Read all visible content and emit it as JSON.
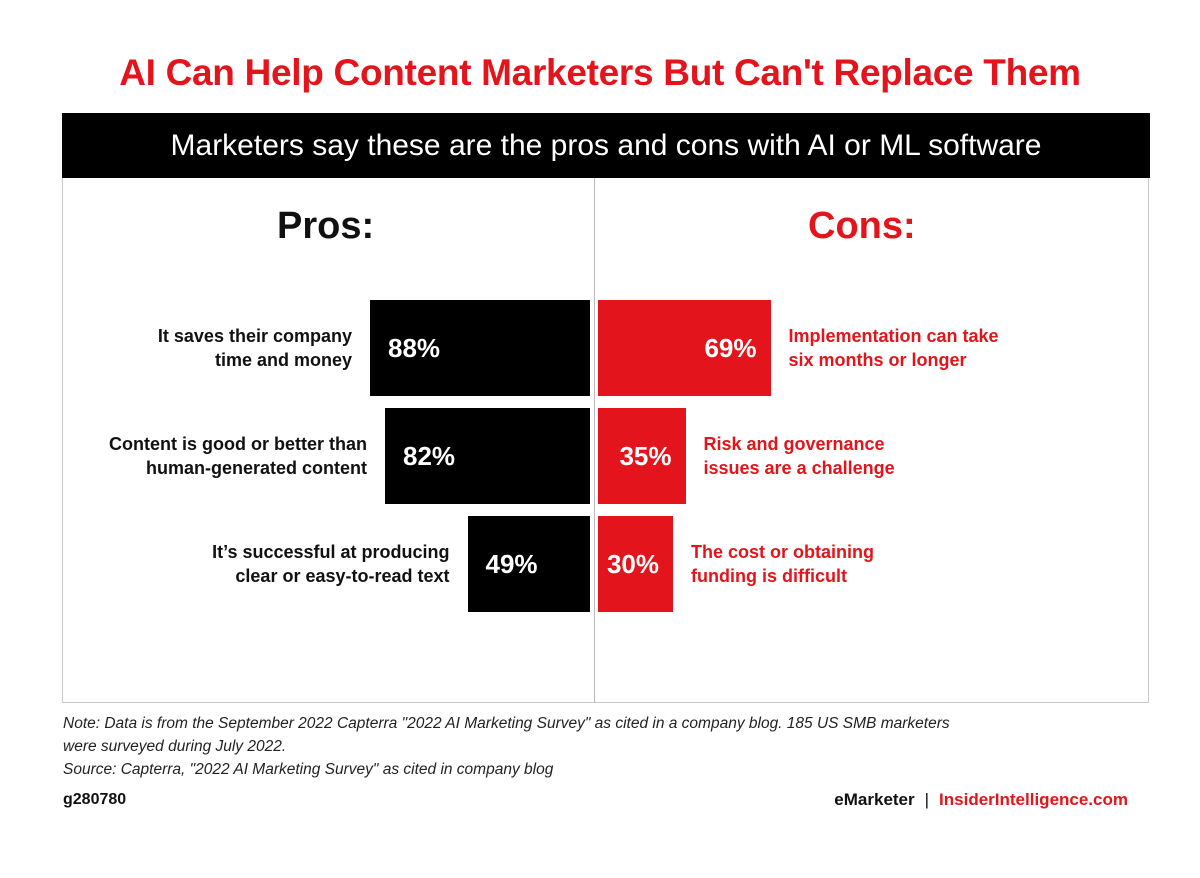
{
  "chart_data": {
    "type": "bar",
    "title": "AI Can Help Content Marketers But Can't Replace Them",
    "subtitle": "Marketers say these are the pros and cons with AI or ML software",
    "value_unit": "%",
    "xlim": [
      0,
      100
    ],
    "pros": {
      "heading": "Pros:",
      "categories": [
        [
          "It saves their company",
          "time and money"
        ],
        [
          "Content is good or better than",
          "human-generated content"
        ],
        [
          "It’s successful at producing",
          "clear or easy-to-read text"
        ]
      ],
      "values": [
        88,
        82,
        49
      ],
      "labels": [
        "88%",
        "82%",
        "49%"
      ],
      "color": "#000000"
    },
    "cons": {
      "heading": "Cons:",
      "categories": [
        [
          "Implementation can take",
          "six months or longer"
        ],
        [
          "Risk and governance",
          "issues are a challenge"
        ],
        [
          "The cost or obtaining",
          "funding is difficult"
        ]
      ],
      "values": [
        69,
        35,
        30
      ],
      "labels": [
        "69%",
        "35%",
        "30%"
      ],
      "color": "#e3141b"
    }
  },
  "footer": {
    "note_line1": "Note: Data is from the September 2022 Capterra \"2022 AI Marketing Survey\" as cited in a company blog. 185 US SMB marketers",
    "note_line2": "were surveyed during July 2022.",
    "source": "Source: Capterra, \"2022 AI Marketing Survey\" as cited in company blog",
    "chart_id": "g280780",
    "brand_left": "eMarketer",
    "brand_separator": "|",
    "brand_right": "InsiderIntelligence.com"
  },
  "colors": {
    "accent": "#e3141b",
    "dark": "#000000"
  }
}
